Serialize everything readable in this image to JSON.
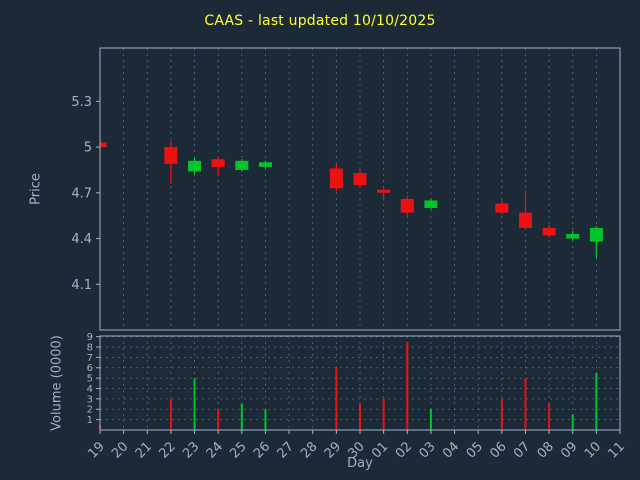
{
  "title": "CAAS - last updated 10/10/2025",
  "axis_labels": {
    "price": "Price",
    "volume": "Volume (0000)",
    "day": "Day"
  },
  "colors": {
    "background": "#1c2a38",
    "title": "#ffff33",
    "axis": "#9db3c8",
    "tick_text": "#9db3c8",
    "grid": "#546b80",
    "up": "#00c428",
    "down": "#ee1111"
  },
  "chart_data": [
    {
      "type": "candlestick",
      "title": "CAAS - last updated 10/10/2025",
      "ylabel": "Price",
      "xlabel": "Day",
      "categories": [
        "19",
        "20",
        "21",
        "22",
        "23",
        "24",
        "25",
        "26",
        "27",
        "28",
        "29",
        "30",
        "01",
        "02",
        "03",
        "04",
        "05",
        "06",
        "07",
        "08",
        "09",
        "10",
        "11"
      ],
      "yticks": [
        4.1,
        4.4,
        4.7,
        5.0,
        5.3
      ],
      "ytick_labels": [
        "4.1",
        "4.4",
        "4.7",
        "5",
        "5.3"
      ],
      "ylim": [
        3.8,
        5.65
      ],
      "ohlc": [
        [
          5.03,
          5.05,
          4.99,
          5.0
        ],
        null,
        null,
        [
          5.0,
          5.04,
          4.76,
          4.89
        ],
        [
          4.84,
          4.93,
          4.82,
          4.91
        ],
        [
          4.92,
          4.94,
          4.81,
          4.87
        ],
        [
          4.85,
          4.92,
          4.84,
          4.91
        ],
        [
          4.87,
          4.91,
          4.86,
          4.9
        ],
        null,
        null,
        [
          4.86,
          4.89,
          4.71,
          4.73
        ],
        [
          4.83,
          4.85,
          4.73,
          4.75
        ],
        [
          4.72,
          4.73,
          4.65,
          4.7
        ],
        [
          4.66,
          4.68,
          4.55,
          4.57
        ],
        [
          4.6,
          4.66,
          4.59,
          4.65
        ],
        null,
        null,
        [
          4.63,
          4.65,
          4.56,
          4.57
        ],
        [
          4.57,
          4.71,
          4.46,
          4.47
        ],
        [
          4.47,
          4.49,
          4.41,
          4.42
        ],
        [
          4.4,
          4.45,
          4.39,
          4.43
        ],
        [
          4.38,
          4.48,
          4.27,
          4.47
        ],
        null
      ]
    },
    {
      "type": "bar",
      "ylabel": "Volume (0000)",
      "yticks": [
        1,
        2,
        3,
        4,
        5,
        6,
        7,
        8,
        9
      ],
      "ytick_labels": [
        "1",
        "2",
        "3",
        "4",
        "5",
        "6",
        "7",
        "8",
        "9"
      ],
      "ylim": [
        0,
        9.06
      ],
      "values": [
        0.5,
        null,
        null,
        3.0,
        5.0,
        2.0,
        2.5,
        2.0,
        null,
        null,
        6.0,
        2.5,
        3.0,
        8.5,
        2.0,
        null,
        null,
        3.0,
        5.0,
        2.5,
        1.5,
        5.5,
        null
      ]
    }
  ]
}
